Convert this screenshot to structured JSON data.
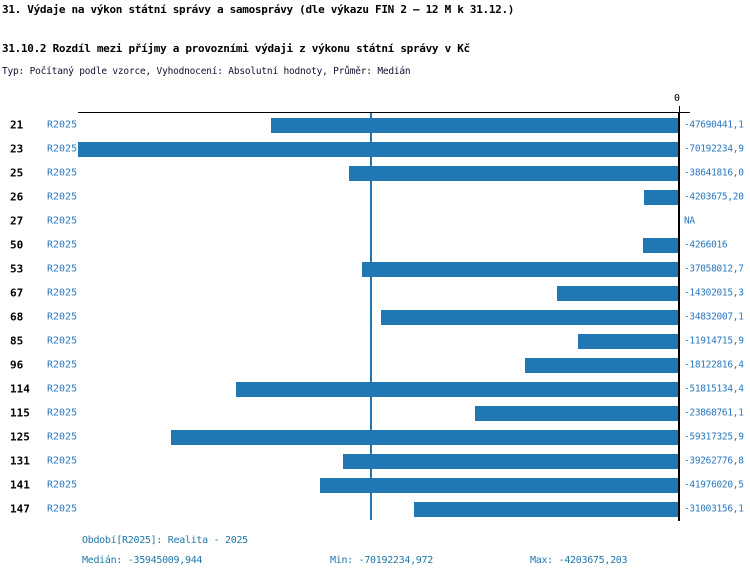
{
  "chart_data": {
    "type": "bar",
    "orientation": "horizontal",
    "title": "31. Výdaje na výkon státní správy a samosprávy (dle výkazu FIN 2 – 12 M k 31.12.)",
    "subtitle": "31.10.2 Rozdíl mezi příjmy a provozními výdaji z výkonu státní správy v Kč",
    "meta_line": "Typ: Počítaný podle vzorce, Vyhodnocení: Absolutní hodnoty, Průměr: Medián",
    "zero_tick_label": "0",
    "value_axis": {
      "min": -70192234.972,
      "max": 0,
      "tick_position": "top-right",
      "grid": false
    },
    "median_line_value": -35945009.944,
    "series_name": "R2025",
    "categories": [
      "21",
      "23",
      "25",
      "26",
      "27",
      "50",
      "53",
      "67",
      "68",
      "85",
      "96",
      "114",
      "115",
      "125",
      "131",
      "141",
      "147"
    ],
    "values": [
      -47690441.1,
      -70192234.9,
      -38641816.0,
      -4203675.2,
      null,
      -4266016,
      -37058012.7,
      -14302015.3,
      -34832007.1,
      -11914715.9,
      -18122816.4,
      -51815134.4,
      -23868761.1,
      -59317325.9,
      -39262776.8,
      -41976020.5,
      -31003156.1
    ],
    "value_labels": [
      "-47690441,1",
      "-70192234,9",
      "-38641816,0",
      "-4203675,20",
      "NA",
      "-4266016",
      "-37058012,7",
      "-14302015,3",
      "-34832007,1",
      "-11914715,9",
      "-18122816,4",
      "-51815134,4",
      "-23868761,1",
      "-59317325,9",
      "-39262776,8",
      "-41976020,5",
      "-31003156,1"
    ],
    "footer": {
      "period": "Období[R2025]: Realita - 2025",
      "median": "Medián: -35945009,944",
      "min": "Min: -70192234,972",
      "max": "Max: -4203675,203"
    },
    "colors": {
      "bar": "#2177b4",
      "blue_text": "#2878be",
      "footer_text": "#1f77a8",
      "axis": "#000000",
      "median_line": "#2177b4"
    }
  }
}
